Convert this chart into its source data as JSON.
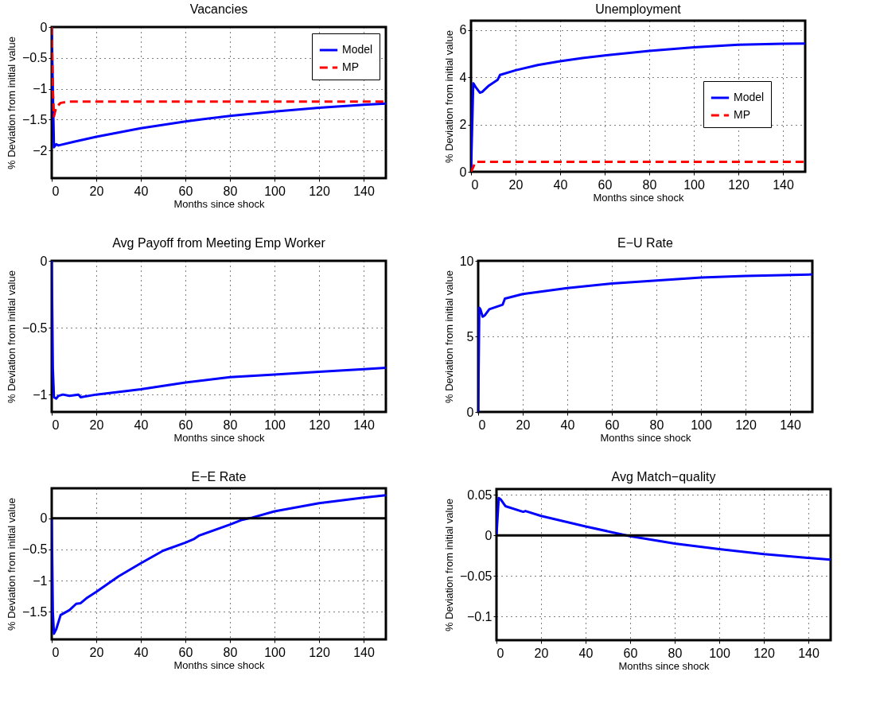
{
  "chart_data": [
    {
      "type": "line",
      "title": "Vacancies",
      "xlabel": "Months since shock",
      "ylabel": "% Deviation from initial value",
      "xlim": [
        0,
        150
      ],
      "xticks": [
        0,
        20,
        40,
        60,
        80,
        100,
        120,
        140
      ],
      "ylim": [
        -2.45,
        0
      ],
      "yticks": [
        -2,
        -1.5,
        -1,
        -0.5,
        0
      ],
      "grid": true,
      "legend": "top right",
      "series": [
        {
          "name": "Model",
          "color": "#0000ff",
          "line_style": "solid",
          "x": [
            0,
            0.5,
            1,
            2,
            3,
            10,
            20,
            40,
            60,
            80,
            100,
            120,
            140,
            150
          ],
          "values": [
            0,
            -1.0,
            -1.95,
            -1.9,
            -1.92,
            -1.86,
            -1.78,
            -1.64,
            -1.53,
            -1.44,
            -1.37,
            -1.31,
            -1.26,
            -1.24
          ]
        },
        {
          "name": "MP",
          "color": "#ff0000",
          "line_style": "dashed",
          "x": [
            0,
            0.5,
            1,
            2,
            4,
            8,
            150
          ],
          "values": [
            0,
            -1.0,
            -1.45,
            -1.3,
            -1.23,
            -1.21,
            -1.21
          ]
        }
      ]
    },
    {
      "type": "line",
      "title": "Unemployment",
      "xlabel": "Months since shock",
      "ylabel": "% Deviation from initial value",
      "xlim": [
        0,
        150
      ],
      "xticks": [
        0,
        20,
        40,
        60,
        80,
        100,
        120,
        140
      ],
      "ylim": [
        0,
        6.4
      ],
      "yticks": [
        0,
        2,
        4,
        6
      ],
      "grid": true,
      "legend": "right",
      "series": [
        {
          "name": "Model",
          "color": "#0000ff",
          "line_style": "solid",
          "x": [
            0,
            1,
            2,
            4,
            5,
            8,
            12,
            13,
            20,
            30,
            40,
            50,
            60,
            80,
            100,
            120,
            140,
            150
          ],
          "values": [
            0,
            3.75,
            3.6,
            3.35,
            3.38,
            3.65,
            3.9,
            4.1,
            4.3,
            4.52,
            4.68,
            4.82,
            4.93,
            5.12,
            5.27,
            5.38,
            5.42,
            5.43
          ]
        },
        {
          "name": "MP",
          "color": "#ff0000",
          "line_style": "dashed",
          "x": [
            0,
            1,
            2,
            150
          ],
          "values": [
            0,
            0.2,
            0.42,
            0.42
          ]
        }
      ]
    },
    {
      "type": "line",
      "title": "Avg Payoff from Meeting Emp Worker",
      "xlabel": "Months since shock",
      "ylabel": "% Deviation from initial value",
      "xlim": [
        0,
        150
      ],
      "xticks": [
        0,
        20,
        40,
        60,
        80,
        100,
        120,
        140
      ],
      "ylim": [
        -1.13,
        0
      ],
      "yticks": [
        -1,
        -0.5,
        0
      ],
      "grid": true,
      "series": [
        {
          "color": "#0000ff",
          "line_style": "solid",
          "x": [
            0,
            0.5,
            1,
            2,
            3,
            5,
            8,
            12,
            13,
            20,
            40,
            60,
            80,
            100,
            120,
            140,
            150
          ],
          "values": [
            0,
            -0.8,
            -1.02,
            -1.03,
            -1.01,
            -1.0,
            -1.01,
            -1.0,
            -1.02,
            -1.0,
            -0.96,
            -0.91,
            -0.87,
            -0.85,
            -0.83,
            -0.81,
            -0.8
          ]
        }
      ]
    },
    {
      "type": "line",
      "title": "E−U Rate",
      "xlabel": "Months since shock",
      "ylabel": "% Deviation from initial value",
      "xlim": [
        0,
        150
      ],
      "xticks": [
        0,
        20,
        40,
        60,
        80,
        100,
        120,
        140
      ],
      "ylim": [
        0,
        10
      ],
      "yticks": [
        0,
        5,
        10
      ],
      "grid": true,
      "series": [
        {
          "color": "#0000ff",
          "line_style": "solid",
          "x": [
            0,
            0.5,
            1,
            2,
            3,
            5,
            11,
            12,
            20,
            40,
            60,
            80,
            100,
            120,
            150
          ],
          "values": [
            0,
            6.9,
            6.8,
            6.3,
            6.4,
            6.8,
            7.1,
            7.5,
            7.8,
            8.2,
            8.5,
            8.7,
            8.9,
            9.0,
            9.1
          ]
        }
      ]
    },
    {
      "type": "line",
      "title": "E−E Rate",
      "xlabel": "Months since shock",
      "ylabel": "% Deviation from initial value",
      "xlim": [
        0,
        150
      ],
      "xticks": [
        0,
        20,
        40,
        60,
        80,
        100,
        120,
        140
      ],
      "ylim": [
        -1.94,
        0.48
      ],
      "yticks": [
        -1.5,
        -1,
        -0.5,
        0
      ],
      "grid": true,
      "ref_lines": [
        {
          "axis": "y",
          "value": 0,
          "color": "#000000"
        }
      ],
      "series": [
        {
          "color": "#0000ff",
          "line_style": "solid",
          "x": [
            0,
            0.5,
            1,
            2,
            4,
            8,
            11,
            13,
            16,
            20,
            30,
            40,
            50,
            60,
            64,
            66,
            80,
            85,
            90,
            100,
            120,
            140,
            150
          ],
          "values": [
            0,
            -1.5,
            -1.85,
            -1.78,
            -1.55,
            -1.47,
            -1.37,
            -1.36,
            -1.27,
            -1.18,
            -0.93,
            -0.72,
            -0.52,
            -0.39,
            -0.33,
            -0.28,
            -0.1,
            -0.03,
            0.01,
            0.11,
            0.24,
            0.33,
            0.37
          ]
        }
      ]
    },
    {
      "type": "line",
      "title": "Avg Match−quality",
      "xlabel": "Months since shock",
      "ylabel": "% Deviation from initial value",
      "xlim": [
        0,
        150
      ],
      "xticks": [
        0,
        20,
        40,
        60,
        80,
        100,
        120,
        140
      ],
      "ylim": [
        -0.129,
        0.057
      ],
      "yticks": [
        -0.1,
        -0.05,
        0,
        0.05
      ],
      "grid": true,
      "ref_lines": [
        {
          "axis": "y",
          "value": 0,
          "color": "#000000"
        }
      ],
      "series": [
        {
          "color": "#0000ff",
          "line_style": "solid",
          "x": [
            0,
            1,
            2,
            4,
            12,
            13,
            20,
            40,
            60,
            80,
            100,
            120,
            150
          ],
          "values": [
            0,
            0.046,
            0.044,
            0.036,
            0.029,
            0.03,
            0.024,
            0.011,
            -0.001,
            -0.01,
            -0.017,
            -0.023,
            -0.03
          ]
        }
      ]
    }
  ]
}
